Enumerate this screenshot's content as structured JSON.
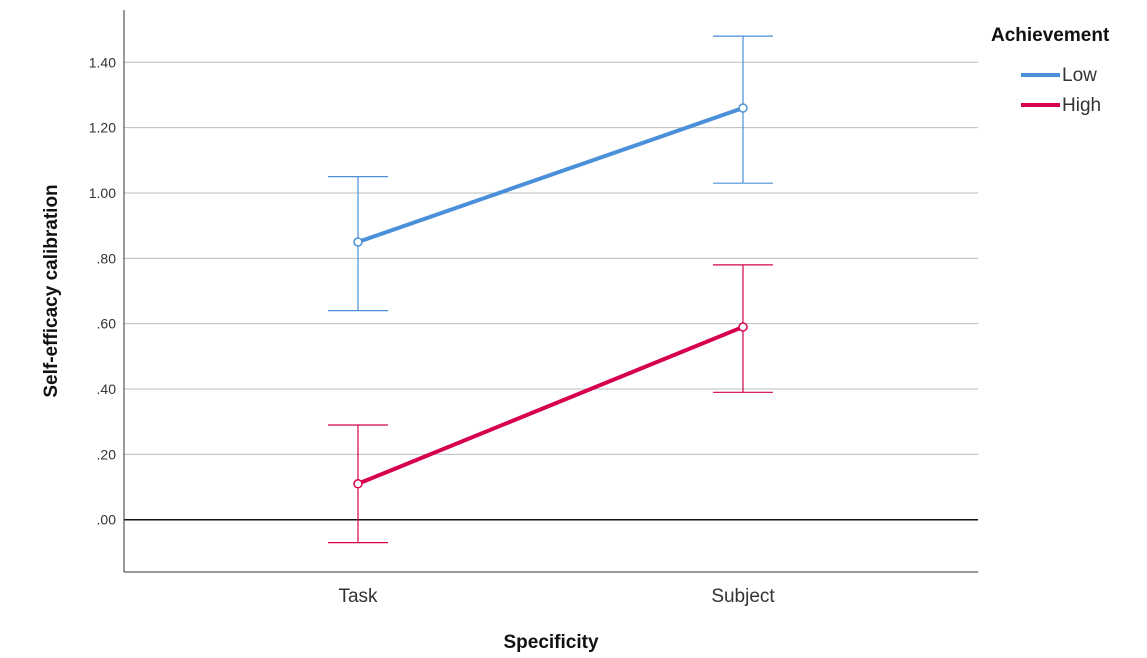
{
  "chart_data": {
    "type": "line",
    "xlabel": "Specificity",
    "ylabel": "Self-efficacy calibration",
    "categories": [
      "Task",
      "Subject"
    ],
    "ylim": [
      -0.16,
      1.56
    ],
    "yticks": [
      0.0,
      0.2,
      0.4,
      0.6,
      0.8,
      1.0,
      1.2,
      1.4
    ],
    "ytick_labels": [
      ".00",
      ".20",
      ".40",
      ".60",
      ".80",
      "1.00",
      "1.20",
      "1.40"
    ],
    "grid": true,
    "legend": {
      "title": "Achievement",
      "position": "top-right"
    },
    "series": [
      {
        "name": "Low",
        "color": "#4a90d9",
        "values": [
          0.85,
          1.26
        ],
        "ci_lower": [
          0.64,
          1.03
        ],
        "ci_upper": [
          1.05,
          1.48
        ]
      },
      {
        "name": "High",
        "color": "#d6004e",
        "values": [
          0.11,
          0.59
        ],
        "ci_lower": [
          -0.07,
          0.39
        ],
        "ci_upper": [
          0.29,
          0.78
        ]
      }
    ]
  }
}
